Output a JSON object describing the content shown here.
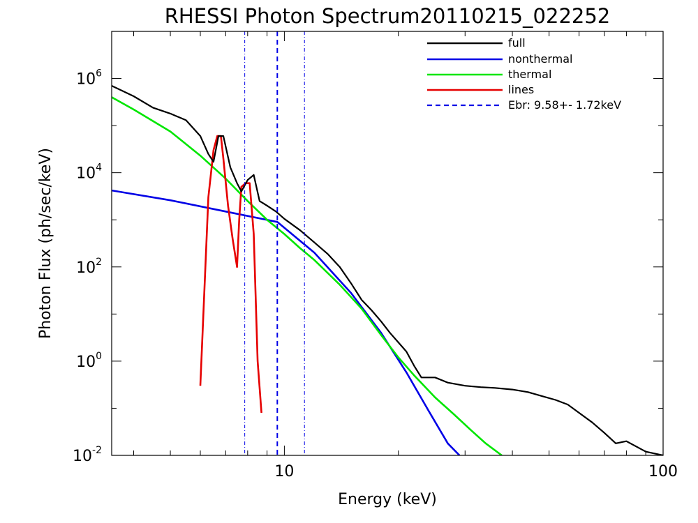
{
  "chart_data": {
    "type": "line",
    "title": "RHESSI Photon Spectrum20110215_022252",
    "xlabel": "Energy (keV)",
    "ylabel": "Photon Flux (ph/sec/keV)",
    "x_scale": "log",
    "y_scale": "log",
    "xlim": [
      3.5,
      100
    ],
    "ylim": [
      0.01,
      10000000
    ],
    "x_ticks": [
      {
        "value": 10,
        "label": "10"
      },
      {
        "value": 100,
        "label": "100"
      }
    ],
    "y_ticks": [
      {
        "value": 0.01,
        "base": "10",
        "exp": "-2"
      },
      {
        "value": 1,
        "base": "10",
        "exp": "0"
      },
      {
        "value": 100,
        "base": "10",
        "exp": "2"
      },
      {
        "value": 10000,
        "base": "10",
        "exp": "4"
      },
      {
        "value": 1000000,
        "base": "10",
        "exp": "6"
      }
    ],
    "grid": false,
    "legend_position": "top-right",
    "series": [
      {
        "name": "full",
        "color": "#000000",
        "x": [
          3.5,
          4.0,
          4.5,
          5.0,
          5.5,
          6.0,
          6.3,
          6.5,
          6.7,
          6.9,
          7.2,
          7.5,
          7.7,
          8.0,
          8.3,
          8.6,
          9.0,
          9.5,
          10,
          11,
          12,
          13,
          14,
          15,
          16,
          17,
          18,
          19,
          20,
          21,
          22,
          23,
          24,
          25,
          27,
          30,
          33,
          36,
          40,
          44,
          48,
          52,
          56,
          60,
          65,
          70,
          75,
          80,
          90,
          100
        ],
        "y": [
          700000,
          420000,
          240000,
          180000,
          130000,
          60000,
          25000,
          17000,
          60000,
          60000,
          13000,
          6000,
          4000,
          7000,
          9000,
          2500,
          2000,
          1500,
          1050,
          600,
          330,
          190,
          100,
          45,
          20,
          12,
          7,
          4,
          2.5,
          1.6,
          0.8,
          0.45,
          0.45,
          0.45,
          0.35,
          0.3,
          0.28,
          0.27,
          0.25,
          0.22,
          0.18,
          0.15,
          0.12,
          0.08,
          0.05,
          0.03,
          0.018,
          0.02,
          0.012,
          0.01
        ]
      },
      {
        "name": "nonthermal",
        "color": "#0000e6",
        "x": [
          3.5,
          5,
          7,
          9.58,
          12,
          15,
          18,
          21,
          24,
          27,
          29
        ],
        "y": [
          4200,
          2600,
          1500,
          900,
          200,
          28,
          4,
          0.58,
          0.09,
          0.018,
          0.01
        ]
      },
      {
        "name": "thermal",
        "color": "#00e600",
        "x": [
          3.5,
          4,
          5,
          6,
          7,
          8,
          9,
          10,
          11,
          12,
          14,
          16,
          18,
          20,
          22,
          25,
          28,
          31,
          34,
          37.5
        ],
        "y": [
          400000,
          220000,
          75000,
          23000,
          7500,
          2500,
          1000,
          500,
          250,
          140,
          42,
          13,
          3.6,
          1.2,
          0.5,
          0.17,
          0.075,
          0.035,
          0.018,
          0.01
        ]
      },
      {
        "name": "lines",
        "color": "#e60000",
        "x": [
          6.0,
          6.3,
          6.5,
          6.65,
          6.8,
          6.9,
          7.1,
          7.3,
          7.5,
          7.6,
          7.7,
          7.9,
          8.1,
          8.3,
          8.5,
          8.7
        ],
        "y": [
          0.3,
          3000,
          30000,
          60000,
          60000,
          20000,
          2000,
          400,
          100,
          1000,
          5000,
          6000,
          6000,
          500,
          1,
          0.08
        ]
      },
      {
        "name": "Ebr:   9.58+-  1.72keV",
        "color": "#0000e6",
        "style": "dashed",
        "break_energy": 9.58,
        "uncertainty_lines": [
          7.86,
          11.3
        ]
      }
    ]
  }
}
